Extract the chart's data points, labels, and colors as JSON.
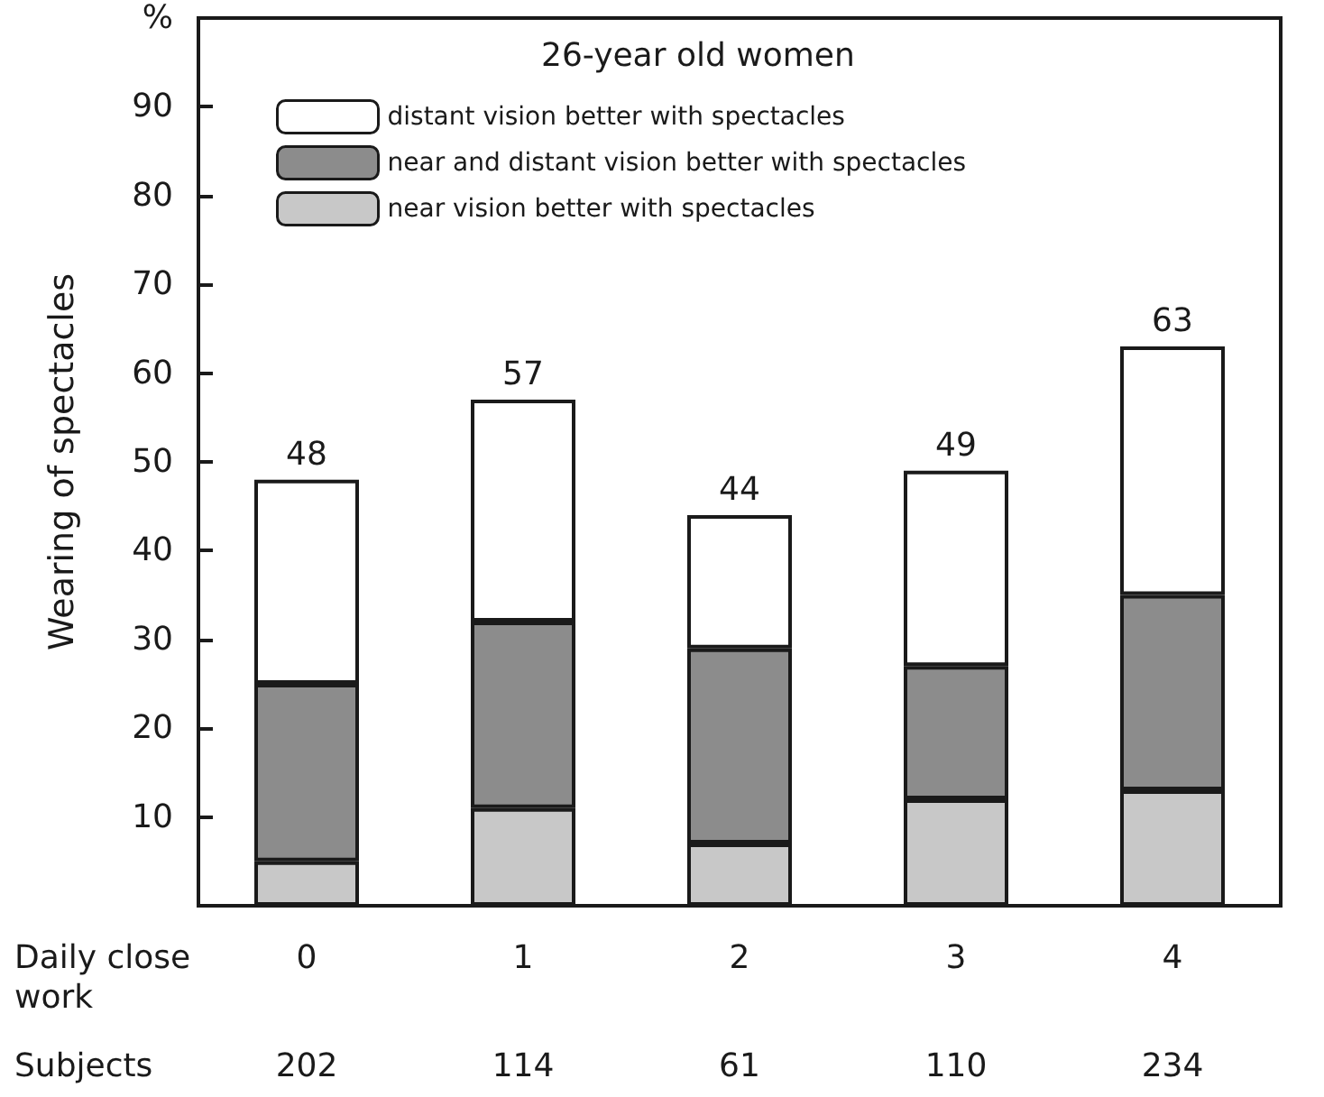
{
  "chart_data": {
    "type": "bar",
    "stacked": true,
    "ylabel": "Wearing of spectacles",
    "xlabel": "Daily close work",
    "legend_title": "26-year old women",
    "legend": "top",
    "categories": [
      "0",
      "1",
      "2",
      "3",
      "4"
    ],
    "series": [
      {
        "name": "near vision better with spectacles",
        "color": "#c8c8c8",
        "values": [
          5,
          11,
          7,
          12,
          13
        ]
      },
      {
        "name": "near and distant vision better with spectacles",
        "color": "#8c8c8c",
        "values": [
          20,
          21,
          22,
          15,
          22
        ]
      },
      {
        "name": "distant vision better with spectacles",
        "color": "#ffffff",
        "values": [
          23,
          25,
          15,
          22,
          28
        ]
      }
    ],
    "totals": [
      "48",
      "57",
      "44",
      "49",
      "63"
    ],
    "ylim": [
      0,
      100
    ],
    "yticks": [
      10,
      20,
      30,
      40,
      50,
      60,
      70,
      80,
      90,
      {
        "value": 100,
        "label": "%"
      }
    ],
    "grid": false,
    "annotations": [
      "Subjects",
      "202",
      "114",
      "61",
      "110",
      "234"
    ]
  }
}
